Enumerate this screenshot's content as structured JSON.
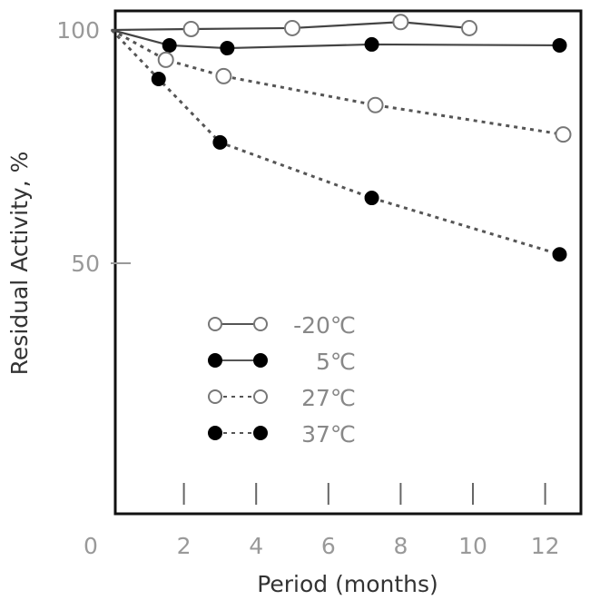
{
  "chart_data": {
    "type": "line",
    "title": "",
    "xlabel": "Period (months)",
    "ylabel": "Residual Activity, %",
    "xlim": [
      0,
      13
    ],
    "ylim": [
      -3.5,
      104
    ],
    "x_ticks": [
      0,
      2,
      4,
      6,
      8,
      10,
      12
    ],
    "y_ticks": [
      50,
      100
    ],
    "grid": false,
    "legend_position": "lower-left",
    "series": [
      {
        "name": "-20℃",
        "marker": "open-circle",
        "line": "solid",
        "x": [
          0,
          2.2,
          5.0,
          8.0,
          9.9
        ],
        "y": [
          100,
          100.2,
          100.4,
          101.7,
          100.4
        ]
      },
      {
        "name": "5℃",
        "marker": "filled-circle",
        "line": "solid",
        "x": [
          0,
          1.6,
          3.2,
          7.2,
          12.4
        ],
        "y": [
          100,
          96.7,
          96.1,
          96.9,
          96.7
        ]
      },
      {
        "name": "27℃",
        "marker": "open-circle",
        "line": "dashed",
        "x": [
          0,
          1.5,
          3.1,
          7.3,
          12.5
        ],
        "y": [
          100,
          93.6,
          90.1,
          83.9,
          77.6
        ]
      },
      {
        "name": "37℃",
        "marker": "filled-circle",
        "line": "dashed",
        "x": [
          0,
          1.3,
          3.0,
          7.2,
          12.4
        ],
        "y": [
          100,
          89.5,
          75.9,
          64.0,
          51.9
        ]
      }
    ]
  }
}
